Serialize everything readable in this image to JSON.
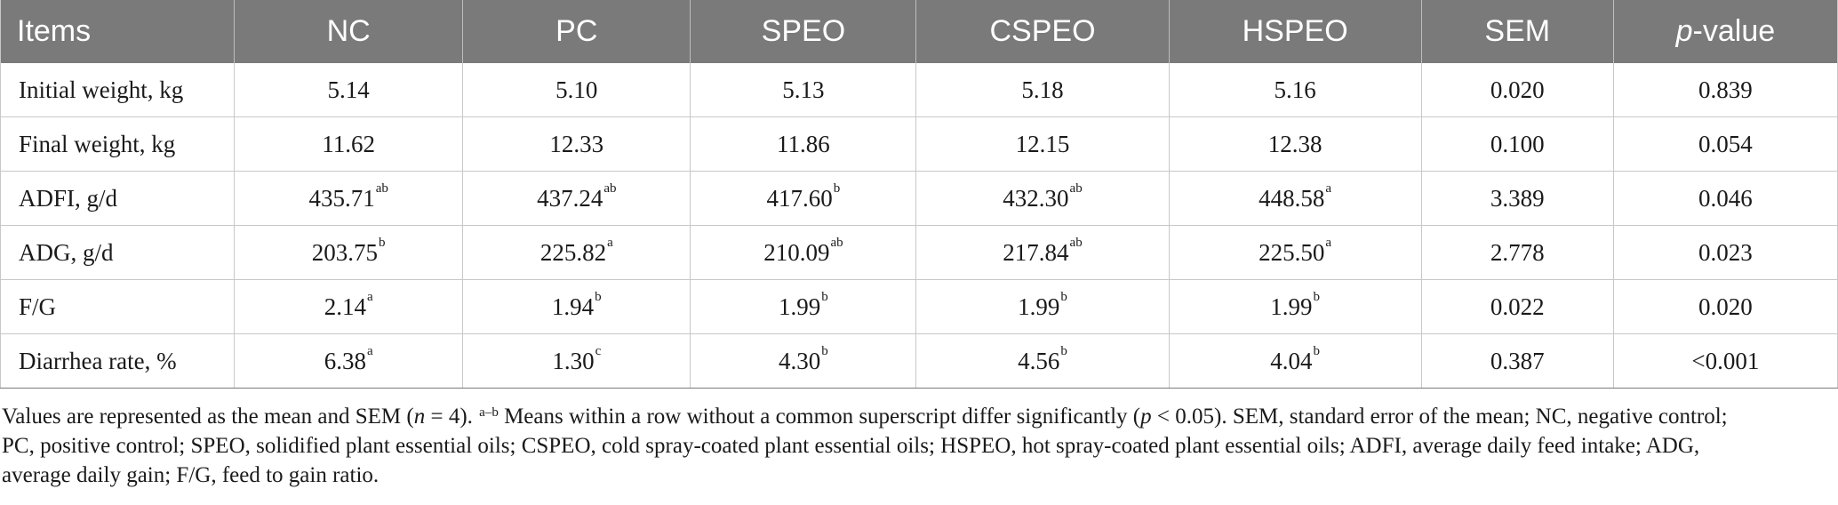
{
  "table": {
    "headers": {
      "items": "Items",
      "nc": "NC",
      "pc": "PC",
      "speo": "SPEO",
      "cspeo": "CSPEO",
      "hspeo": "HSPEO",
      "sem": "SEM",
      "p_italic": "p",
      "p_rest": "-value"
    },
    "rows": [
      {
        "item": "Initial weight, kg",
        "nc": "5.14",
        "nc_sup": "",
        "pc": "5.10",
        "pc_sup": "",
        "speo": "5.13",
        "speo_sup": "",
        "cspeo": "5.18",
        "cspeo_sup": "",
        "hspeo": "5.16",
        "hspeo_sup": "",
        "sem": "0.020",
        "p": "0.839"
      },
      {
        "item": "Final weight, kg",
        "nc": "11.62",
        "nc_sup": "",
        "pc": "12.33",
        "pc_sup": "",
        "speo": "11.86",
        "speo_sup": "",
        "cspeo": "12.15",
        "cspeo_sup": "",
        "hspeo": "12.38",
        "hspeo_sup": "",
        "sem": "0.100",
        "p": "0.054"
      },
      {
        "item": "ADFI, g/d",
        "nc": "435.71",
        "nc_sup": "ab",
        "pc": "437.24",
        "pc_sup": "ab",
        "speo": "417.60",
        "speo_sup": "b",
        "cspeo": "432.30",
        "cspeo_sup": "ab",
        "hspeo": "448.58",
        "hspeo_sup": "a",
        "sem": "3.389",
        "p": "0.046"
      },
      {
        "item": "ADG, g/d",
        "nc": "203.75",
        "nc_sup": "b",
        "pc": "225.82",
        "pc_sup": "a",
        "speo": "210.09",
        "speo_sup": "ab",
        "cspeo": "217.84",
        "cspeo_sup": "ab",
        "hspeo": "225.50",
        "hspeo_sup": "a",
        "sem": "2.778",
        "p": "0.023"
      },
      {
        "item": "F/G",
        "nc": "2.14",
        "nc_sup": "a",
        "pc": "1.94",
        "pc_sup": "b",
        "speo": "1.99",
        "speo_sup": "b",
        "cspeo": "1.99",
        "cspeo_sup": "b",
        "hspeo": "1.99",
        "hspeo_sup": "b",
        "sem": "0.022",
        "p": "0.020"
      },
      {
        "item": "Diarrhea rate, %",
        "nc": "6.38",
        "nc_sup": "a",
        "pc": "1.30",
        "pc_sup": "c",
        "speo": "4.30",
        "speo_sup": "b",
        "cspeo": "4.56",
        "cspeo_sup": "b",
        "hspeo": "4.04",
        "hspeo_sup": "b",
        "sem": "0.387",
        "p": "<0.001"
      }
    ]
  },
  "footnote": {
    "l1_a": "Values are represented as the mean and SEM (",
    "l1_n": "n",
    "l1_b": " = 4). ",
    "l1_sup": "a–b",
    "l1_c": " Means within a row without a common superscript differ significantly (",
    "l1_p": "p",
    "l1_d": " < 0.05). SEM, standard error of the mean; NC, negative control;",
    "l2": "PC, positive control; SPEO, solidified plant essential oils; CSPEO, cold spray-coated plant essential oils; HSPEO, hot spray-coated plant essential oils; ADFI, average daily feed intake; ADG,",
    "l3": "average daily gain; F/G, feed to gain ratio."
  },
  "colors": {
    "header_bg": "#7a7a7a",
    "header_text": "#ffffff",
    "grid": "#c8c8c8"
  }
}
